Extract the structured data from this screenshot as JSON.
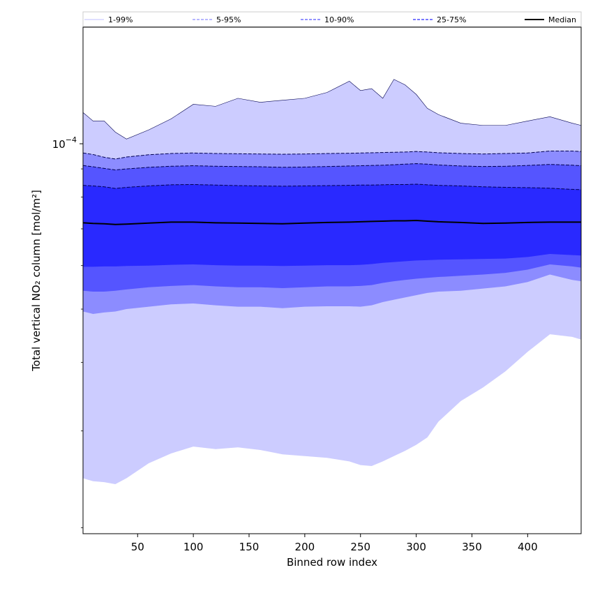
{
  "chart_data": {
    "type": "area",
    "title": "",
    "xlabel": "Binned row index",
    "ylabel": "Total vertical NO₂ column [mol/m²]",
    "yscale": "log",
    "x_range": [
      1,
      448
    ],
    "y_range": [
      1.95e-05,
      0.000163
    ],
    "x_ticks": [
      50,
      100,
      150,
      200,
      250,
      300,
      350,
      400
    ],
    "y_ticks": [
      {
        "value": 0.0001,
        "base": "10",
        "exponent": "−4"
      }
    ],
    "legend_placement": "top (horizontal strip)",
    "x": [
      1,
      10,
      20,
      30,
      40,
      60,
      80,
      100,
      120,
      140,
      160,
      180,
      200,
      220,
      240,
      250,
      260,
      270,
      280,
      290,
      300,
      310,
      320,
      340,
      360,
      380,
      400,
      420,
      440,
      448
    ],
    "bands": [
      {
        "name": "1-99%",
        "color": "#ccccff",
        "lower": [
          2.46e-05,
          2.43e-05,
          2.42e-05,
          2.4e-05,
          2.46e-05,
          2.62e-05,
          2.73e-05,
          2.81e-05,
          2.78e-05,
          2.8e-05,
          2.77e-05,
          2.72e-05,
          2.7e-05,
          2.68e-05,
          2.64e-05,
          2.6e-05,
          2.59e-05,
          2.64e-05,
          2.7e-05,
          2.76e-05,
          2.83e-05,
          2.92e-05,
          3.12e-05,
          3.4e-05,
          3.6e-05,
          3.85e-05,
          4.18e-05,
          4.5e-05,
          4.45e-05,
          4.4e-05
        ],
        "upper": [
          0.000114,
          0.00011,
          0.00011,
          0.000105,
          0.000102,
          0.000106,
          0.000111,
          0.000118,
          0.000117,
          0.000121,
          0.000119,
          0.00012,
          0.000121,
          0.000124,
          0.00013,
          0.000125,
          0.000126,
          0.000121,
          0.000131,
          0.000128,
          0.000123,
          0.000116,
          0.000113,
          0.000109,
          0.000108,
          0.000108,
          0.00011,
          0.000112,
          0.000109,
          0.000108
        ]
      },
      {
        "name": "5-95%",
        "color": "#8c8cff",
        "lower": [
          4.95e-05,
          4.9e-05,
          4.93e-05,
          4.95e-05,
          5e-05,
          5.05e-05,
          5.1e-05,
          5.12e-05,
          5.08e-05,
          5.05e-05,
          5.05e-05,
          5.02e-05,
          5.05e-05,
          5.06e-05,
          5.06e-05,
          5.05e-05,
          5.08e-05,
          5.15e-05,
          5.2e-05,
          5.25e-05,
          5.3e-05,
          5.35e-05,
          5.38e-05,
          5.4e-05,
          5.45e-05,
          5.5e-05,
          5.6e-05,
          5.78e-05,
          5.65e-05,
          5.62e-05
        ],
        "upper": [
          9.62e-05,
          9.56e-05,
          9.45e-05,
          9.38e-05,
          9.46e-05,
          9.55e-05,
          9.6e-05,
          9.62e-05,
          9.6e-05,
          9.59e-05,
          9.58e-05,
          9.57e-05,
          9.58e-05,
          9.6e-05,
          9.61e-05,
          9.62e-05,
          9.63e-05,
          9.64e-05,
          9.65e-05,
          9.66e-05,
          9.68e-05,
          9.66e-05,
          9.63e-05,
          9.6e-05,
          9.58e-05,
          9.6e-05,
          9.62e-05,
          9.7e-05,
          9.7e-05,
          9.68e-05
        ]
      },
      {
        "name": "10-90%",
        "color": "#5555ff",
        "lower": [
          5.4e-05,
          5.38e-05,
          5.38e-05,
          5.4e-05,
          5.43e-05,
          5.48e-05,
          5.51e-05,
          5.53e-05,
          5.5e-05,
          5.48e-05,
          5.48e-05,
          5.46e-05,
          5.48e-05,
          5.5e-05,
          5.5e-05,
          5.51e-05,
          5.53e-05,
          5.58e-05,
          5.62e-05,
          5.65e-05,
          5.68e-05,
          5.7e-05,
          5.72e-05,
          5.75e-05,
          5.78e-05,
          5.82e-05,
          5.9e-05,
          6.03e-05,
          5.98e-05,
          5.95e-05
        ],
        "upper": [
          9.13e-05,
          9.08e-05,
          9.02e-05,
          8.96e-05,
          9e-05,
          9.06e-05,
          9.1e-05,
          9.12e-05,
          9.1e-05,
          9.09e-05,
          9.08e-05,
          9.06e-05,
          9.07e-05,
          9.09e-05,
          9.11e-05,
          9.12e-05,
          9.13e-05,
          9.14e-05,
          9.16e-05,
          9.18e-05,
          9.2e-05,
          9.18e-05,
          9.15e-05,
          9.11e-05,
          9.09e-05,
          9.1e-05,
          9.13e-05,
          9.17e-05,
          9.14e-05,
          9.12e-05
        ]
      },
      {
        "name": "25-75%",
        "color": "#2929ff",
        "lower": [
          5.97e-05,
          5.97e-05,
          5.98e-05,
          5.98e-05,
          5.99e-05,
          6e-05,
          6.02e-05,
          6.03e-05,
          6.01e-05,
          6e-05,
          6e-05,
          5.99e-05,
          6e-05,
          6.01e-05,
          6.01e-05,
          6.02e-05,
          6.04e-05,
          6.07e-05,
          6.09e-05,
          6.11e-05,
          6.13e-05,
          6.14e-05,
          6.15e-05,
          6.16e-05,
          6.17e-05,
          6.18e-05,
          6.22e-05,
          6.3e-05,
          6.27e-05,
          6.26e-05
        ],
        "upper": [
          8.4e-05,
          8.38e-05,
          8.35e-05,
          8.29e-05,
          8.33e-05,
          8.38e-05,
          8.42e-05,
          8.43e-05,
          8.41e-05,
          8.39e-05,
          8.38e-05,
          8.37e-05,
          8.38e-05,
          8.39e-05,
          8.4e-05,
          8.41e-05,
          8.41e-05,
          8.42e-05,
          8.43e-05,
          8.43e-05,
          8.44e-05,
          8.42e-05,
          8.4e-05,
          8.38e-05,
          8.35e-05,
          8.33e-05,
          8.32e-05,
          8.3e-05,
          8.26e-05,
          8.25e-05
        ]
      }
    ],
    "median": {
      "name": "Median",
      "color": "#000000",
      "values": [
        7.18e-05,
        7.16e-05,
        7.15e-05,
        7.13e-05,
        7.14e-05,
        7.17e-05,
        7.2e-05,
        7.2e-05,
        7.18e-05,
        7.17e-05,
        7.16e-05,
        7.15e-05,
        7.17e-05,
        7.19e-05,
        7.2e-05,
        7.21e-05,
        7.22e-05,
        7.23e-05,
        7.24e-05,
        7.24e-05,
        7.25e-05,
        7.23e-05,
        7.21e-05,
        7.19e-05,
        7.16e-05,
        7.17e-05,
        7.19e-05,
        7.2e-05,
        7.2e-05,
        7.2e-05
      ]
    },
    "legend": [
      {
        "label": "1-99%",
        "color": "#ccccff",
        "style": "solid"
      },
      {
        "label": "5-95%",
        "color": "#8c8cff",
        "style": "dashed"
      },
      {
        "label": "10-90%",
        "color": "#5555ff",
        "style": "dashed"
      },
      {
        "label": "25-75%",
        "color": "#2929ff",
        "style": "dashed"
      },
      {
        "label": "Median",
        "color": "#000000",
        "style": "solid"
      }
    ]
  }
}
